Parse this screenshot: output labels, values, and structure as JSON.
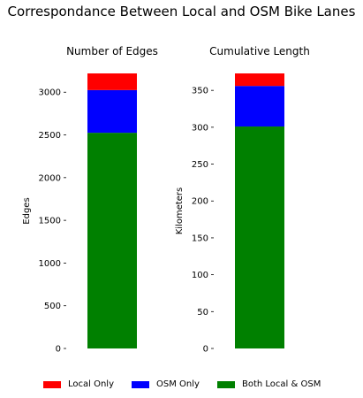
{
  "figure": {
    "title": "Correspondance Between Local and OSM Bike Lanes"
  },
  "legend": {
    "placement": "bottom-center",
    "items": [
      {
        "label": "Local Only",
        "color": "#ff0000"
      },
      {
        "label": "OSM Only",
        "color": "#0000ff"
      },
      {
        "label": "Both Local & OSM",
        "color": "#008000"
      }
    ]
  },
  "chart_data": [
    {
      "type": "bar",
      "stacked": true,
      "title": "Number of Edges",
      "xlabel": "",
      "ylabel": "Edges",
      "ylim": [
        0,
        3220
      ],
      "yticks": [
        0,
        500,
        1000,
        1500,
        2000,
        2500,
        3000
      ],
      "ytick_labels": [
        "0",
        "500",
        "1000",
        "1500",
        "2000",
        "2500",
        "3000"
      ],
      "grid": false,
      "series": [
        {
          "name": "Both Local & OSM",
          "color": "#008000",
          "values": [
            2525
          ]
        },
        {
          "name": "OSM Only",
          "color": "#0000ff",
          "values": [
            500
          ]
        },
        {
          "name": "Local Only",
          "color": "#ff0000",
          "values": [
            195
          ]
        }
      ]
    },
    {
      "type": "bar",
      "stacked": true,
      "title": "Cumulative Length",
      "xlabel": "",
      "ylabel": "Kilometers",
      "ylim": [
        0,
        373
      ],
      "yticks": [
        0,
        50,
        100,
        150,
        200,
        250,
        300,
        350
      ],
      "ytick_labels": [
        "0",
        "50",
        "100",
        "150",
        "200",
        "250",
        "300",
        "350"
      ],
      "grid": false,
      "series": [
        {
          "name": "Both Local & OSM",
          "color": "#008000",
          "values": [
            301
          ]
        },
        {
          "name": "OSM Only",
          "color": "#0000ff",
          "values": [
            55
          ]
        },
        {
          "name": "Local Only",
          "color": "#ff0000",
          "values": [
            17
          ]
        }
      ]
    }
  ]
}
